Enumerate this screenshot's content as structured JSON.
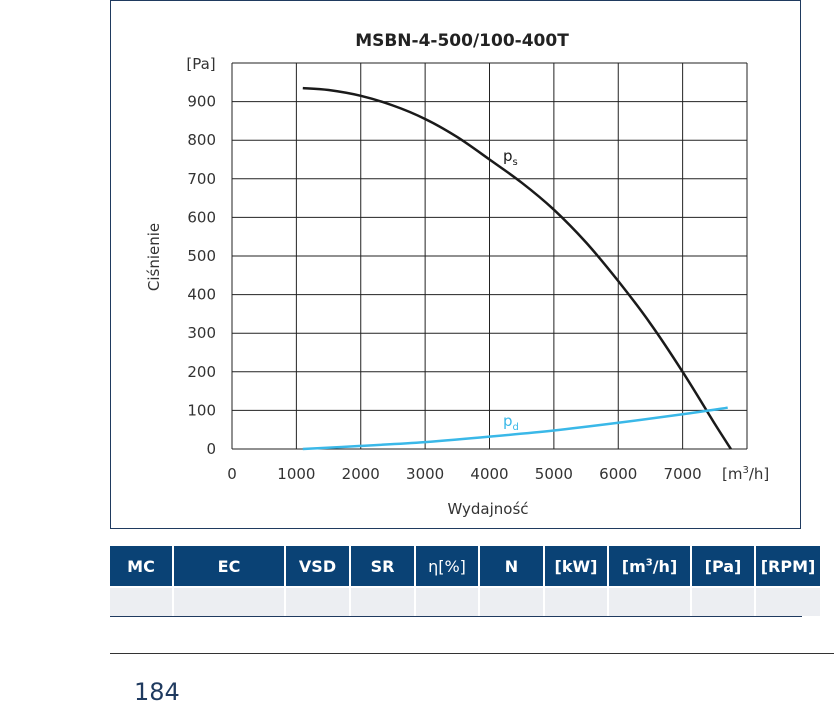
{
  "chart_data": {
    "type": "line",
    "title": "MSBN-4-500/100-400T",
    "xlabel": "Wydajność",
    "ylabel": "Ciśnienie",
    "x_unit_base": "[m",
    "x_unit_sup": "3",
    "x_unit_tail": "/h]",
    "y_unit": "[Pa]",
    "xlim": [
      0,
      8000
    ],
    "ylim": [
      0,
      1000
    ],
    "x_ticks": [
      "0",
      "1000",
      "2000",
      "3000",
      "4000",
      "5000",
      "6000",
      "7000"
    ],
    "y_ticks": [
      "0",
      "100",
      "200",
      "300",
      "400",
      "500",
      "600",
      "700",
      "800",
      "900"
    ],
    "grid": true,
    "series": [
      {
        "name": "p",
        "subscript": "s",
        "color": "#1a1a1a",
        "x": [
          1100,
          1500,
          2000,
          2500,
          3000,
          3500,
          4000,
          4500,
          5000,
          5500,
          6000,
          6500,
          7000,
          7500,
          7750
        ],
        "y": [
          935,
          930,
          915,
          890,
          855,
          808,
          750,
          690,
          620,
          535,
          435,
          325,
          200,
          65,
          0
        ]
      },
      {
        "name": "p",
        "subscript": "d",
        "color": "#3ab8e8",
        "x": [
          1100,
          2000,
          3000,
          4000,
          5000,
          6000,
          7000,
          7700
        ],
        "y": [
          0,
          8,
          18,
          32,
          48,
          68,
          90,
          107
        ]
      }
    ]
  },
  "table": {
    "headers": [
      "MC",
      "EC",
      "VSD",
      "SR",
      "η[%]",
      "N",
      "[kW]",
      "[m³/h]",
      "[Pa]",
      "[RPM]"
    ],
    "rows": [
      [
        "",
        "",
        "",
        "",
        "",
        "",
        "",
        "",
        "",
        ""
      ]
    ]
  },
  "page_number": "184"
}
